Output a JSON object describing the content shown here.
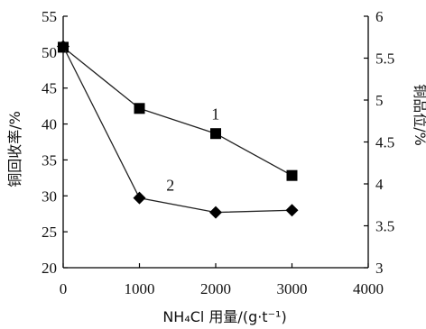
{
  "chart_data": {
    "type": "line",
    "x": [
      0,
      1000,
      2000,
      3000
    ],
    "xlabel": "NH₄Cl 用量/(g·t⁻¹)",
    "xlim": [
      0,
      4000
    ],
    "xticks": [
      0,
      1000,
      2000,
      3000,
      4000
    ],
    "ylabel": "铜回收率/%",
    "ylim": [
      20,
      55
    ],
    "yticks": [
      20,
      25,
      30,
      35,
      40,
      45,
      50,
      55
    ],
    "y2label": "铜品位/%",
    "y2lim": [
      3,
      6
    ],
    "y2ticks": [
      "3",
      "3.5",
      "4",
      "4.5",
      "5",
      "5.5",
      "6"
    ],
    "grid": false,
    "series": [
      {
        "name": "1",
        "axis": "right",
        "marker": "square",
        "values": [
          5.63,
          4.9,
          4.6,
          4.1
        ]
      },
      {
        "name": "2",
        "axis": "left",
        "marker": "diamond",
        "values": [
          50.8,
          29.7,
          27.7,
          28.0
        ]
      }
    ]
  }
}
